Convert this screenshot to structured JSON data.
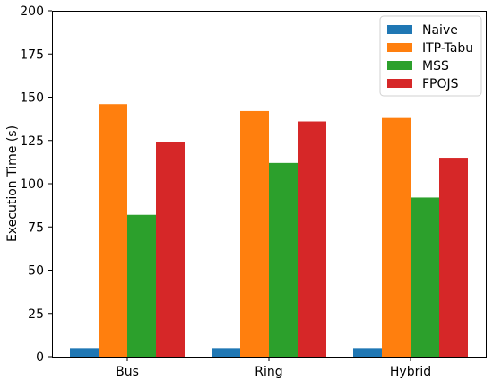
{
  "chart_data": {
    "type": "bar",
    "categories": [
      "Bus",
      "Ring",
      "Hybrid"
    ],
    "series": [
      {
        "name": "Naive",
        "color": "#1f77b4",
        "values": [
          5,
          5,
          5
        ]
      },
      {
        "name": "ITP-Tabu",
        "color": "#ff7f0e",
        "values": [
          146,
          142,
          138
        ]
      },
      {
        "name": "MSS",
        "color": "#2ca02c",
        "values": [
          82,
          112,
          92
        ]
      },
      {
        "name": "FPOJS",
        "color": "#d62728",
        "values": [
          124,
          136,
          115
        ]
      }
    ],
    "title": "",
    "xlabel": "",
    "ylabel": "Execution Time (s)",
    "ylim": [
      0,
      200
    ],
    "yticks": [
      "0",
      "25",
      "50",
      "75",
      "100",
      "125",
      "150",
      "175",
      "200"
    ],
    "grid": false,
    "legend_position": "top-right"
  }
}
